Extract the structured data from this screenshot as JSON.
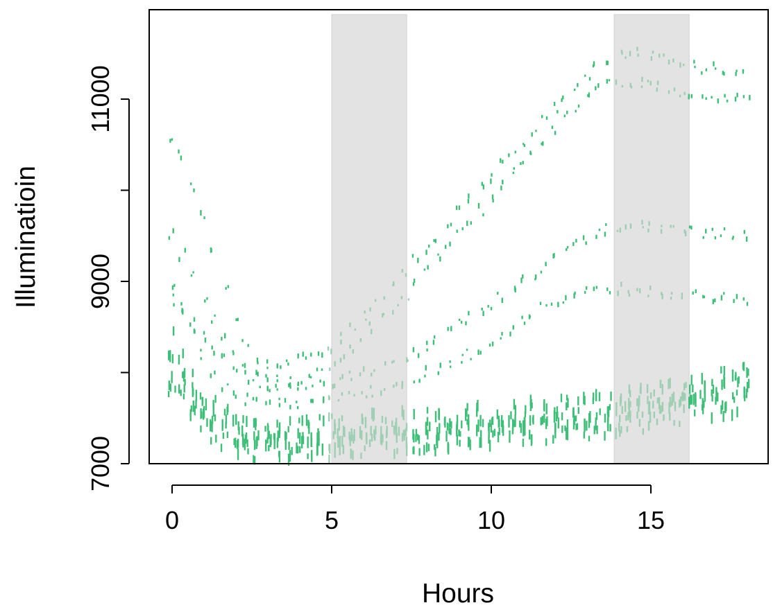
{
  "chart_data": {
    "type": "scatter",
    "xlabel": "Hours",
    "ylabel": "Illuminatioin",
    "xlim": [
      -1.2,
      18.3
    ],
    "ylim": [
      7000,
      11000
    ],
    "x_ticks": [
      {
        "value": 0,
        "label": "0"
      },
      {
        "value": 5,
        "label": "5"
      },
      {
        "value": 10,
        "label": "10"
      },
      {
        "value": 15,
        "label": "15"
      }
    ],
    "y_ticks": [
      {
        "value": 7000,
        "label": "7000"
      },
      {
        "value": 9000,
        "label": "9000"
      },
      {
        "value": 11000,
        "label": "11000"
      }
    ],
    "y_minor_ticks": [
      8000,
      10000
    ],
    "shaded_intervals": [
      {
        "x_start": 5.0,
        "x_end": 7.35
      },
      {
        "x_start": 13.85,
        "x_end": 16.2
      }
    ],
    "marker_color": "#3dbf77",
    "shaded_color": "#e3e3e3",
    "series_samples": [
      {
        "x": [
          0,
          0.3,
          0.65,
          1.0,
          1.3,
          1.65,
          2.0,
          2.3,
          2.65,
          3.0,
          3.3,
          3.65,
          4.0,
          4.3,
          4.65,
          5.0,
          5.3,
          5.65,
          6.0,
          6.3,
          6.65,
          7.0,
          7.3,
          7.65,
          8.0,
          8.3,
          8.65,
          9.0,
          9.3,
          9.65,
          10.0,
          10.3,
          10.65,
          11.0,
          11.3,
          11.65,
          12.0,
          12.3,
          12.65,
          13.0,
          13.3,
          13.65,
          14.0,
          14.3,
          14.65,
          15.0,
          15.3,
          15.65,
          16.0,
          16.3,
          16.65,
          17.0,
          17.3,
          17.65,
          18.0
        ],
        "y": [
          10550,
          10380,
          10050,
          9700,
          9350,
          8950,
          8600,
          8300,
          8150,
          8100,
          8080,
          8100,
          8150,
          8180,
          8220,
          8280,
          8380,
          8500,
          8620,
          8750,
          8870,
          9000,
          9120,
          9250,
          9370,
          9500,
          9620,
          9760,
          9880,
          10020,
          10150,
          10280,
          10400,
          10530,
          10650,
          10780,
          10900,
          11030,
          11160,
          11270,
          11360,
          11430,
          11470,
          11490,
          11500,
          11490,
          11470,
          11420,
          11390,
          11360,
          11340,
          11330,
          11320,
          11310,
          11300
        ]
      },
      {
        "x": [
          0,
          0.3,
          0.65,
          1.0,
          1.3,
          1.65,
          2.0,
          2.3,
          2.65,
          3.0,
          3.3,
          3.65,
          4.0,
          4.3,
          4.65,
          5.0,
          5.3,
          5.65,
          6.0,
          6.3,
          6.65,
          7.0,
          7.3,
          7.65,
          8.0,
          8.3,
          8.65,
          9.0,
          9.3,
          9.65,
          10.0,
          10.3,
          10.65,
          11.0,
          11.3,
          11.65,
          12.0,
          12.3,
          12.65,
          13.0,
          13.3,
          13.65,
          14.0,
          14.3,
          14.65,
          15.0,
          15.3,
          15.65,
          16.0,
          16.3,
          16.65,
          17.0,
          17.3,
          17.65,
          18.0
        ],
        "y": [
          9500,
          9300,
          9050,
          8800,
          8600,
          8400,
          8250,
          8100,
          8000,
          7950,
          7920,
          7920,
          7940,
          7970,
          8000,
          8060,
          8150,
          8250,
          8360,
          8480,
          8600,
          8720,
          8860,
          9000,
          9130,
          9270,
          9400,
          9530,
          9660,
          9790,
          9920,
          10050,
          10180,
          10310,
          10440,
          10560,
          10680,
          10800,
          10920,
          11020,
          11100,
          11150,
          11170,
          11180,
          11180,
          11170,
          11140,
          11100,
          11080,
          11060,
          11040,
          11030,
          11020,
          11010,
          11000
        ]
      },
      {
        "x": [
          0,
          0.3,
          0.65,
          1.0,
          1.3,
          1.65,
          2.0,
          2.3,
          2.65,
          3.0,
          3.3,
          3.65,
          4.0,
          4.3,
          4.65,
          5.0,
          5.3,
          5.65,
          6.0,
          6.3,
          6.65,
          7.0,
          7.3,
          7.65,
          8.0,
          8.3,
          8.65,
          9.0,
          9.3,
          9.65,
          10.0,
          10.3,
          10.65,
          11.0,
          11.3,
          11.65,
          12.0,
          12.3,
          12.65,
          13.0,
          13.3,
          13.65,
          14.0,
          14.3,
          14.65,
          15.0,
          15.3,
          15.65,
          16.0,
          16.3,
          16.65,
          17.0,
          17.3,
          17.65,
          18.0
        ],
        "y": [
          8800,
          8700,
          8550,
          8400,
          8250,
          8150,
          8050,
          7950,
          7880,
          7850,
          7840,
          7840,
          7850,
          7860,
          7880,
          7900,
          7930,
          7960,
          7990,
          8020,
          8060,
          8100,
          8140,
          8200,
          8280,
          8360,
          8440,
          8520,
          8600,
          8680,
          8760,
          8850,
          8920,
          9000,
          9080,
          9160,
          9240,
          9320,
          9400,
          9470,
          9530,
          9570,
          9590,
          9600,
          9600,
          9590,
          9580,
          9570,
          9560,
          9550,
          9540,
          9530,
          9520,
          9510,
          9500
        ]
      },
      {
        "x": [
          0,
          0.3,
          0.65,
          1.0,
          1.3,
          1.65,
          2.0,
          2.3,
          2.65,
          3.0,
          3.3,
          3.65,
          4.0,
          4.3,
          4.65,
          5.0,
          5.3,
          5.65,
          6.0,
          6.3,
          6.65,
          7.0,
          7.3,
          7.65,
          8.0,
          8.3,
          8.65,
          9.0,
          9.3,
          9.65,
          10.0,
          10.3,
          10.65,
          11.0,
          11.3,
          11.65,
          12.0,
          12.3,
          12.65,
          13.0,
          13.3,
          13.65,
          14.0,
          14.3,
          14.65,
          15.0,
          15.3,
          15.65,
          16.0,
          16.3,
          16.65,
          17.0,
          17.3,
          17.65,
          18.0
        ],
        "y": [
          8900,
          8700,
          8450,
          8200,
          8000,
          7850,
          7750,
          7700,
          7680,
          7670,
          7660,
          7660,
          7660,
          7670,
          7680,
          7700,
          7720,
          7740,
          7770,
          7800,
          7830,
          7860,
          7900,
          7950,
          8000,
          8050,
          8100,
          8150,
          8200,
          8260,
          8320,
          8400,
          8480,
          8550,
          8620,
          8700,
          8760,
          8820,
          8870,
          8900,
          8920,
          8920,
          8910,
          8900,
          8890,
          8880,
          8870,
          8860,
          8850,
          8840,
          8830,
          8820,
          8810,
          8800,
          8790
        ]
      },
      {
        "x": [
          0,
          0.3,
          0.65,
          1.0,
          1.3,
          1.65,
          2.0,
          2.3,
          2.65,
          3.0,
          3.3,
          3.65,
          4.0,
          4.3,
          4.65,
          5.0,
          5.3,
          5.65,
          6.0,
          6.3,
          6.65,
          7.0,
          7.3,
          7.65,
          8.0,
          8.3,
          8.65,
          9.0,
          9.3,
          9.65,
          10.0,
          10.3,
          10.65,
          11.0,
          11.3,
          11.65,
          12.0,
          12.3,
          12.65,
          13.0,
          13.3,
          13.65,
          14.0,
          14.3,
          14.65,
          15.0,
          15.3,
          15.65,
          16.0,
          16.3,
          16.65,
          17.0,
          17.3,
          17.65,
          18.0
        ],
        "y": [
          8300,
          8100,
          7900,
          7700,
          7560,
          7460,
          7400,
          7370,
          7360,
          7350,
          7350,
          7350,
          7350,
          7360,
          7370,
          7380,
          7390,
          7400,
          7410,
          7410,
          7420,
          7420,
          7430,
          7430,
          7440,
          7450,
          7460,
          7470,
          7480,
          7490,
          7500,
          7510,
          7520,
          7530,
          7540,
          7550,
          7560,
          7570,
          7580,
          7590,
          7600,
          7620,
          7640,
          7660,
          7680,
          7700,
          7720,
          7740,
          7760,
          7790,
          7820,
          7850,
          7880,
          7900,
          7930
        ]
      },
      {
        "x": [
          0,
          0.3,
          0.65,
          1.0,
          1.3,
          1.65,
          2.0,
          2.3,
          2.65,
          3.0,
          3.3,
          3.65,
          4.0,
          4.3,
          4.65,
          5.0,
          5.3,
          5.65,
          6.0,
          6.3,
          6.65,
          7.0,
          7.3,
          7.65,
          8.0,
          8.3,
          8.65,
          9.0,
          9.3,
          9.65,
          10.0,
          10.3,
          10.65,
          11.0,
          11.3,
          11.65,
          12.0,
          12.3,
          12.65,
          13.0,
          13.3,
          13.65,
          14.0,
          14.3,
          14.65,
          15.0,
          15.3,
          15.65,
          16.0,
          16.3,
          16.65,
          17.0,
          17.3,
          17.65,
          18.0
        ],
        "y": [
          7900,
          7750,
          7600,
          7450,
          7350,
          7280,
          7230,
          7200,
          7190,
          7180,
          7180,
          7180,
          7180,
          7190,
          7200,
          7210,
          7220,
          7230,
          7230,
          7240,
          7240,
          7250,
          7260,
          7260,
          7270,
          7280,
          7290,
          7300,
          7310,
          7320,
          7330,
          7340,
          7350,
          7360,
          7370,
          7380,
          7390,
          7400,
          7410,
          7420,
          7430,
          7450,
          7470,
          7490,
          7510,
          7530,
          7550,
          7570,
          7590,
          7610,
          7630,
          7650,
          7670,
          7690,
          7700
        ]
      }
    ]
  }
}
